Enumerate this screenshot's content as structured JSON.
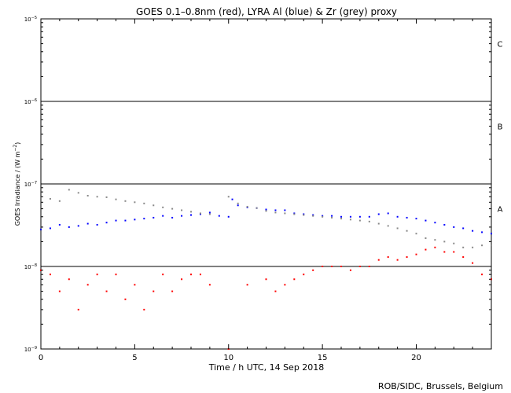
{
  "chart_data": {
    "type": "scatter",
    "title": "GOES 0.1–0.8nm (red), LYRA Al (blue) & Zr (grey) proxy",
    "xlabel": "Time / h UTC, 14 Sep 2018",
    "ylabel_main": "GOES Irradiance / (W m",
    "ylabel_sup": "−2",
    "ylabel_end": ")",
    "xlim": [
      0,
      24
    ],
    "ylim": [
      1e-09,
      1e-05
    ],
    "yscale": "log",
    "x_ticks": [
      0,
      5,
      10,
      15,
      20
    ],
    "x_tick_labels": [
      "0",
      "5",
      "10",
      "15",
      "20"
    ],
    "y_tick_base": "10",
    "y_tick_exponents": [
      "−9",
      "−8",
      "−7",
      "−6",
      "−5"
    ],
    "y_tick_values": [
      1e-09,
      1e-08,
      1e-07,
      1e-06,
      1e-05
    ],
    "class_lines": [
      1e-08,
      1e-07,
      1e-06
    ],
    "class_labels": [
      {
        "label": "A",
        "y": 5e-08
      },
      {
        "label": "B",
        "y": 5e-07
      },
      {
        "label": "C",
        "y": 5e-06
      }
    ],
    "series": [
      {
        "color": "#ff0000",
        "x": [
          0.0,
          0.5,
          1.0,
          1.5,
          2.0,
          2.5,
          3.0,
          3.5,
          4.0,
          4.5,
          5.0,
          5.5,
          6.0,
          6.5,
          7.0,
          7.5,
          8.0,
          8.5,
          9.0,
          10.0,
          11.0,
          12.0,
          12.5,
          13.0,
          13.5,
          14.0,
          14.5,
          15.0,
          15.5,
          16.0,
          16.5,
          17.0,
          17.5,
          18.0,
          18.5,
          19.0,
          19.5,
          20.0,
          20.5,
          21.0,
          21.5,
          22.0,
          22.5,
          23.0,
          23.5,
          24.0
        ],
        "values": [
          9e-09,
          8e-09,
          5e-09,
          7e-09,
          3e-09,
          6e-09,
          8e-09,
          5e-09,
          8e-09,
          4e-09,
          6e-09,
          3e-09,
          5e-09,
          8e-09,
          5e-09,
          7e-09,
          8e-09,
          8e-09,
          6e-09,
          1e-09,
          6e-09,
          7e-09,
          5e-09,
          6e-09,
          7e-09,
          8e-09,
          9e-09,
          1e-08,
          1e-08,
          1e-08,
          9e-09,
          1e-08,
          1e-08,
          1.2e-08,
          1.3e-08,
          1.2e-08,
          1.3e-08,
          1.4e-08,
          1.6e-08,
          1.7e-08,
          1.5e-08,
          1.5e-08,
          1.3e-08,
          1.1e-08,
          8e-09,
          7e-09
        ]
      },
      {
        "color": "#0000ff",
        "x": [
          0.0,
          0.5,
          1.0,
          1.5,
          2.0,
          2.5,
          3.0,
          3.5,
          4.0,
          4.5,
          5.0,
          5.5,
          6.0,
          6.5,
          7.0,
          7.5,
          8.0,
          8.5,
          9.0,
          9.5,
          10.0,
          10.2,
          10.5,
          11.0,
          11.5,
          12.0,
          12.5,
          13.0,
          13.5,
          14.0,
          14.5,
          15.0,
          15.5,
          16.0,
          16.5,
          17.0,
          17.5,
          18.0,
          18.5,
          19.0,
          19.5,
          20.0,
          20.5,
          21.0,
          21.5,
          22.0,
          22.5,
          23.0,
          23.5,
          24.0
        ],
        "values": [
          2.8e-08,
          2.9e-08,
          3.2e-08,
          3e-08,
          3.1e-08,
          3.3e-08,
          3.2e-08,
          3.4e-08,
          3.6e-08,
          3.6e-08,
          3.7e-08,
          3.8e-08,
          3.9e-08,
          4.1e-08,
          3.9e-08,
          4.1e-08,
          4.2e-08,
          4.3e-08,
          4.5e-08,
          4.1e-08,
          4e-08,
          6.5e-08,
          5.5e-08,
          5.2e-08,
          5.1e-08,
          4.9e-08,
          4.8e-08,
          4.8e-08,
          4.4e-08,
          4.3e-08,
          4.2e-08,
          4.1e-08,
          4.1e-08,
          4e-08,
          4e-08,
          4e-08,
          4e-08,
          4.3e-08,
          4.4e-08,
          4e-08,
          3.9e-08,
          3.8e-08,
          3.6e-08,
          3.4e-08,
          3.2e-08,
          3e-08,
          2.9e-08,
          2.7e-08,
          2.6e-08,
          2.5e-08
        ]
      },
      {
        "color": "#888888",
        "x": [
          0.0,
          0.5,
          1.0,
          1.5,
          2.0,
          2.5,
          3.0,
          3.5,
          4.0,
          4.5,
          5.0,
          5.5,
          6.0,
          6.5,
          7.0,
          7.5,
          8.0,
          8.5,
          9.0,
          10.0,
          10.5,
          11.0,
          11.5,
          12.0,
          12.5,
          13.0,
          13.5,
          14.0,
          14.5,
          15.0,
          15.5,
          16.0,
          16.5,
          17.0,
          17.5,
          18.0,
          18.5,
          19.0,
          19.5,
          20.0,
          20.5,
          21.0,
          21.5,
          22.0,
          22.5,
          23.0,
          23.5,
          24.0
        ],
        "values": [
          6.8e-08,
          6.6e-08,
          6.2e-08,
          8.5e-08,
          7.8e-08,
          7.2e-08,
          7e-08,
          6.9e-08,
          6.5e-08,
          6.2e-08,
          6e-08,
          5.8e-08,
          5.5e-08,
          5.2e-08,
          5e-08,
          4.8e-08,
          4.6e-08,
          4.4e-08,
          4.3e-08,
          7e-08,
          5.8e-08,
          5.3e-08,
          5.1e-08,
          4.7e-08,
          4.5e-08,
          4.4e-08,
          4.3e-08,
          4.2e-08,
          4.1e-08,
          4e-08,
          3.9e-08,
          3.8e-08,
          3.7e-08,
          3.6e-08,
          3.5e-08,
          3.3e-08,
          3.1e-08,
          2.9e-08,
          2.7e-08,
          2.5e-08,
          2.2e-08,
          2.1e-08,
          2e-08,
          1.9e-08,
          1.7e-08,
          1.7e-08,
          1.8e-08,
          1.8e-08
        ]
      }
    ]
  },
  "credit": "ROB/SIDC, Brussels, Belgium"
}
